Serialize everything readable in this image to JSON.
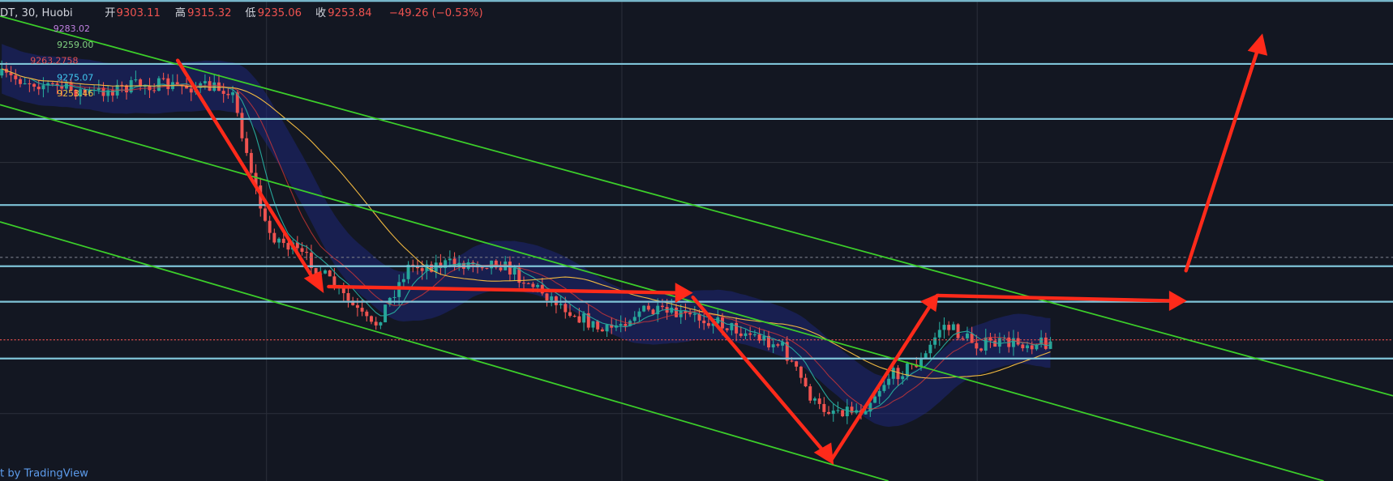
{
  "header": {
    "symbol": "DT, 30, Huobi",
    "open_label": "开",
    "open": "9303.11",
    "high_label": "高",
    "high": "9315.32",
    "low_label": "低",
    "low": "9235.06",
    "close_label": "收",
    "close": "9253.84",
    "change": "−49.26 (−0.53%)"
  },
  "indicators": [
    "9283.02",
    "9259.00",
    "9263.2758",
    "9275.07",
    "9253.46"
  ],
  "footer": "t by TradingView"
}
